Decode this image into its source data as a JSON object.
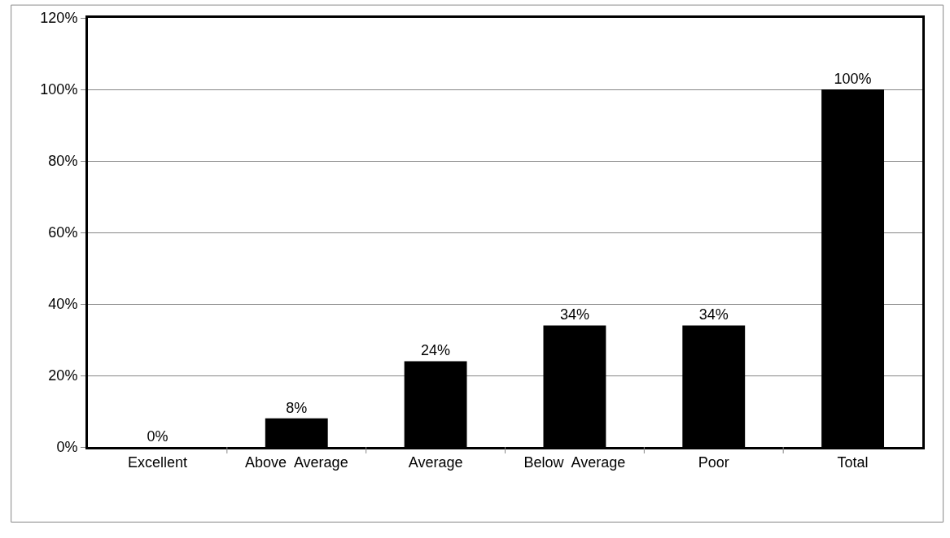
{
  "chart_data": {
    "type": "bar",
    "categories": [
      "Excellent",
      "Above  Average",
      "Average",
      "Below  Average",
      "Poor",
      "Total"
    ],
    "values": [
      0,
      8,
      24,
      34,
      34,
      100
    ],
    "value_labels": [
      "0%",
      "8%",
      "24%",
      "34%",
      "34%",
      "100%"
    ],
    "color": "#000000",
    "ylim": [
      0,
      120
    ],
    "yticks": [
      {
        "value": 0,
        "label": "0%"
      },
      {
        "value": 20,
        "label": "20%"
      },
      {
        "value": 40,
        "label": "40%"
      },
      {
        "value": 60,
        "label": "60%"
      },
      {
        "value": 80,
        "label": "80%"
      },
      {
        "value": 100,
        "label": "100%"
      },
      {
        "value": 120,
        "label": "120%"
      }
    ],
    "grid": "y"
  }
}
